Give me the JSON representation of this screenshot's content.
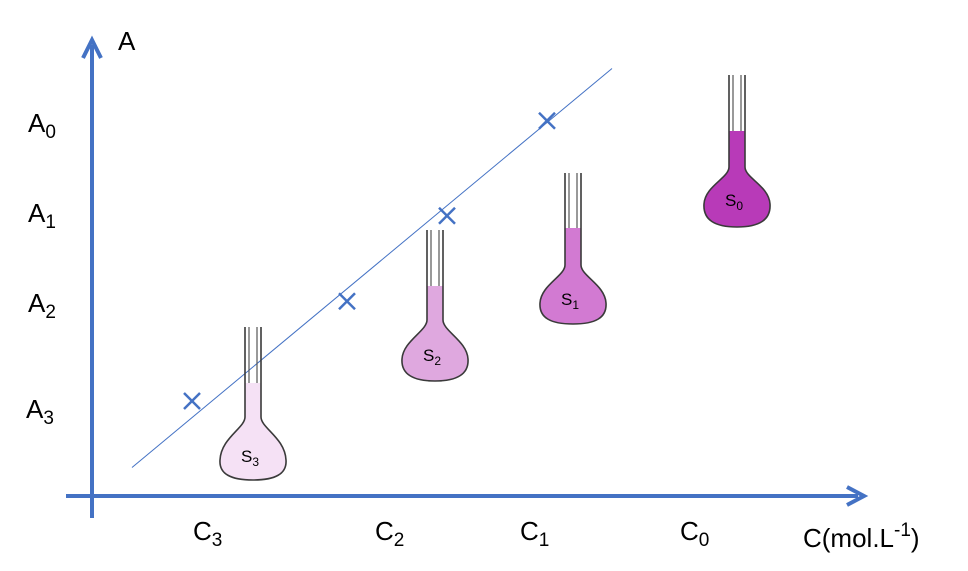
{
  "chart_data": {
    "type": "scatter",
    "title": "",
    "xlabel": {
      "base": "C(mol.L",
      "sup": "-1",
      "tail": ")"
    },
    "ylabel": "A",
    "x_ticks": [
      {
        "base": "C",
        "sub": "3"
      },
      {
        "base": "C",
        "sub": "2"
      },
      {
        "base": "C",
        "sub": "1"
      },
      {
        "base": "C",
        "sub": "0"
      }
    ],
    "y_ticks": [
      {
        "base": "A",
        "sub": "0"
      },
      {
        "base": "A",
        "sub": "1"
      },
      {
        "base": "A",
        "sub": "2"
      },
      {
        "base": "A",
        "sub": "3"
      }
    ],
    "points": [
      {
        "x": 1,
        "y": 1
      },
      {
        "x": 2.55,
        "y": 2.05
      },
      {
        "x": 3.55,
        "y": 2.95
      },
      {
        "x": 4.55,
        "y": 3.95
      }
    ],
    "fit_line": {
      "x": [
        0.4,
        5.2
      ],
      "y": [
        0.3,
        4.5
      ]
    },
    "xlim": [
      0,
      6
    ],
    "ylim": [
      0,
      4.8
    ],
    "colors": {
      "axis": "#4472C4",
      "marker": "#4472C4",
      "line": "#4472C4"
    }
  },
  "flasks": [
    {
      "base": "S",
      "sub": "3",
      "fill": "#F5E1F5",
      "neck_fill": "#F2DCF2"
    },
    {
      "base": "S",
      "sub": "2",
      "fill": "#DFA8DF",
      "neck_fill": "#DFA8DF"
    },
    {
      "base": "S",
      "sub": "1",
      "fill": "#D27AD2",
      "neck_fill": "#D27AD2"
    },
    {
      "base": "S",
      "sub": "0",
      "fill": "#B83AB8",
      "neck_fill": "#B83AB8"
    }
  ]
}
